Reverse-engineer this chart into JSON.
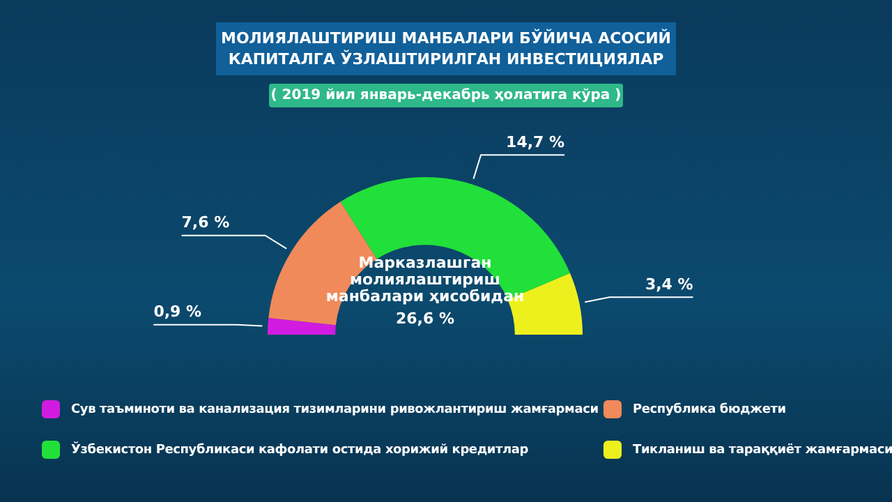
{
  "chart_data": {
    "type": "donut",
    "title": "МОЛИЯЛАШТИРИШ МАНБАЛАРИ БЎЙИЧА АСОСИЙ КАПИТАЛГА ЎЗЛАШТИРИЛГАН ИНВЕСТИЦИЯЛАР",
    "subtitle": "( 2019 йил январь-декабрь ҳолатига кўра )",
    "categories": [
      "Сув таъминоти ва канализация тизимларини ривожлантириш жамғармаси",
      "Республика бюджети",
      "Ўзбекистон Республикаси кафолати остида хорижий кредитлар",
      "Тикланиш ва тараққиёт жамғармаси"
    ],
    "values": [
      0.9,
      7.6,
      14.7,
      3.4
    ],
    "colors": [
      "#d21be0",
      "#f08a5a",
      "#22e03a",
      "#eef01e"
    ],
    "value_labels": [
      "0,9 %",
      "7,6 %",
      "14,7 %",
      "3,4 %"
    ],
    "annotations": [
      "Марказлашган молиялаштириш манбалари ҳисобидан",
      "26,6 %"
    ],
    "legend": "bottom"
  }
}
